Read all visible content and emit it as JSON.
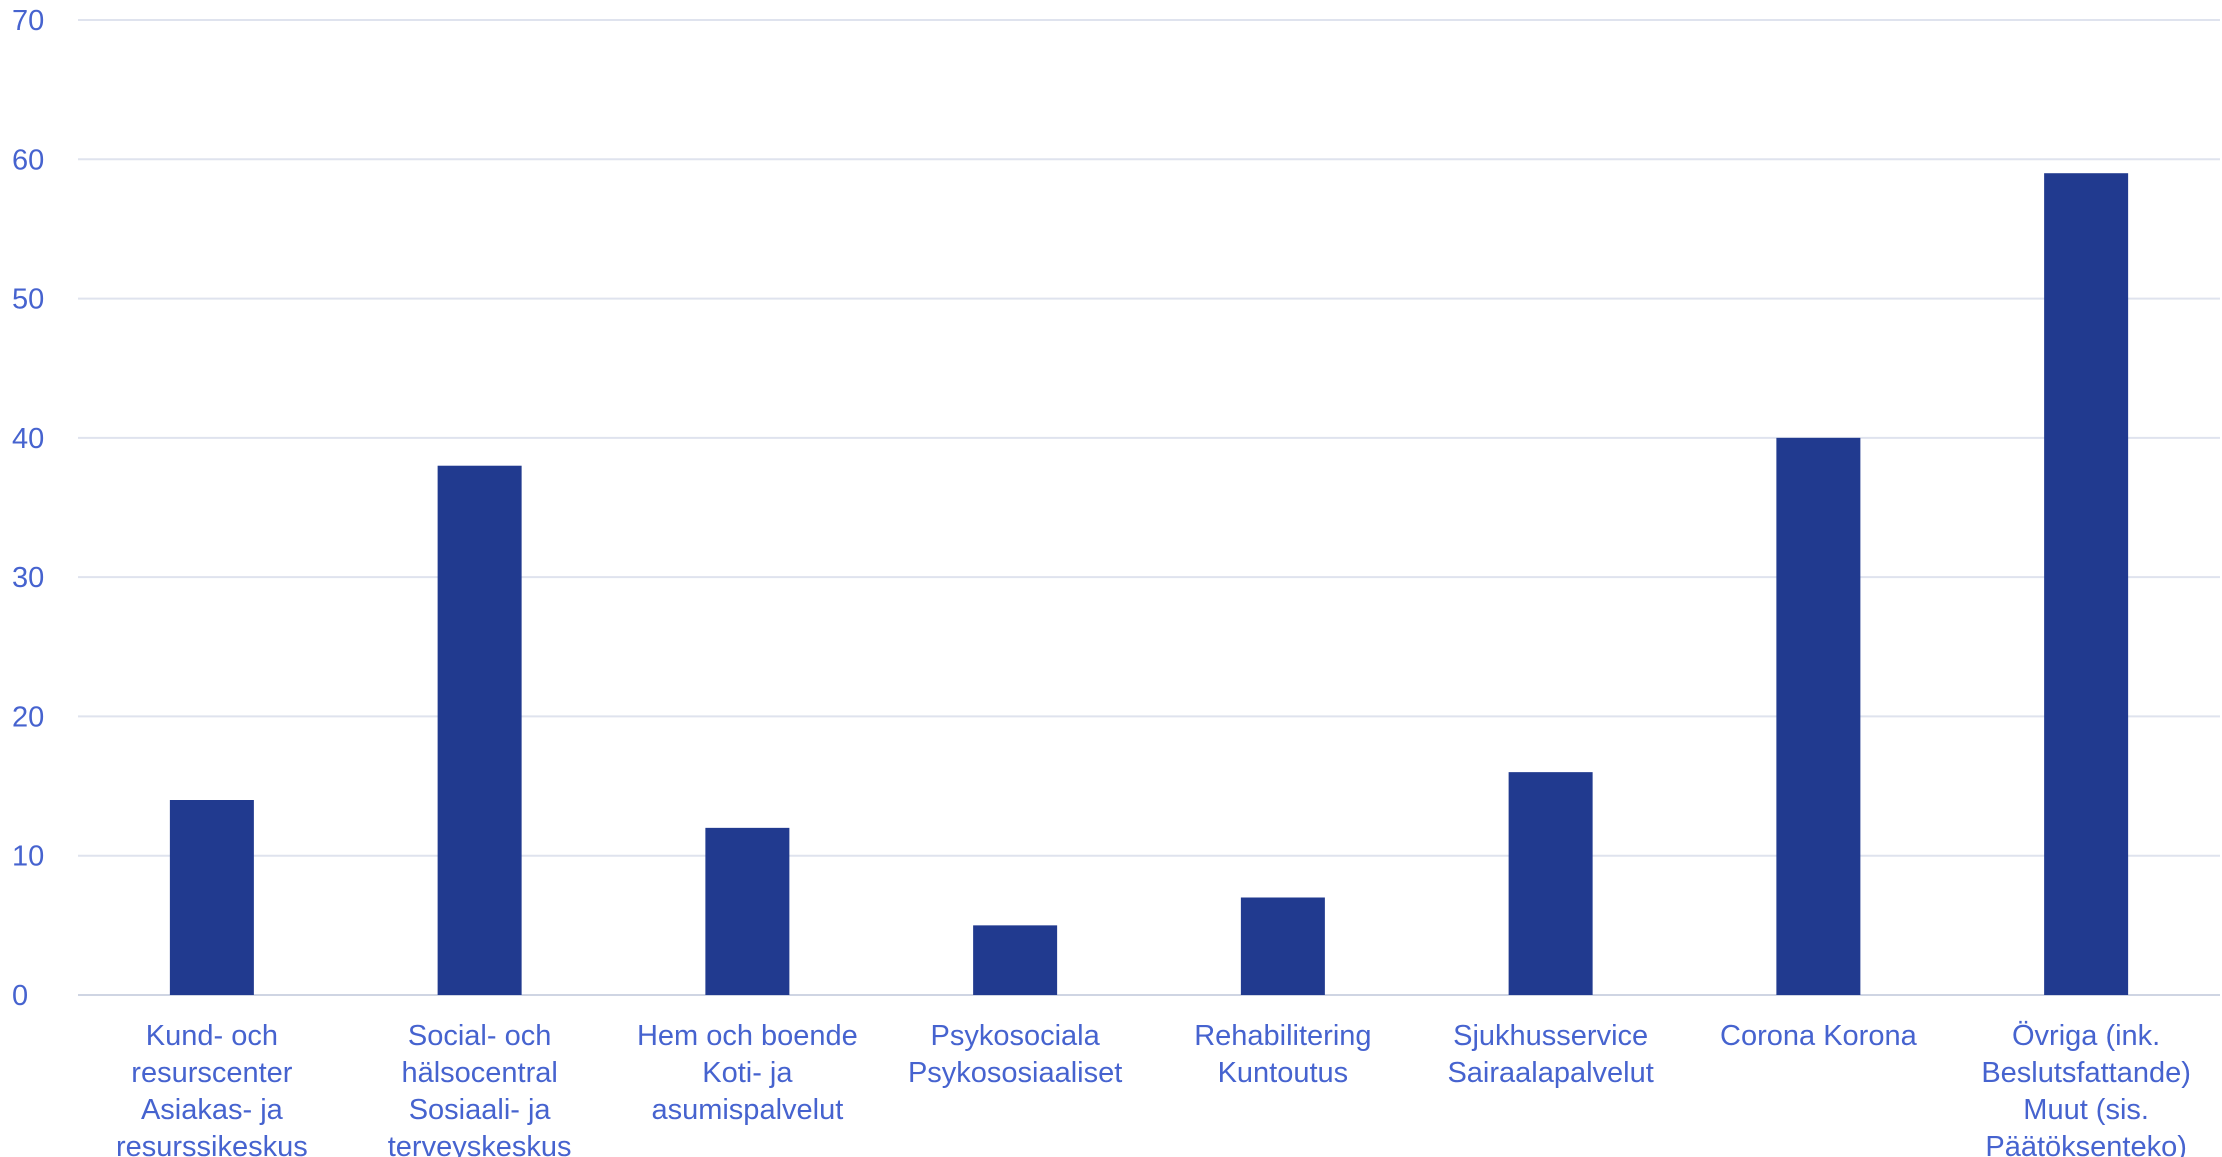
{
  "chart_data": {
    "type": "bar",
    "title": "",
    "xlabel": "",
    "ylabel": "",
    "ylim": [
      0,
      70
    ],
    "yticks": [
      0,
      10,
      20,
      30,
      40,
      50,
      60,
      70
    ],
    "grid": true,
    "categories": [
      [
        "Kund- och",
        "resurscenter",
        "Asiakas- ja",
        "resurssikeskus"
      ],
      [
        "Social- och",
        "hälsocentral",
        "Sosiaali- ja",
        "terveyskeskus"
      ],
      [
        "Hem och boende",
        "Koti- ja",
        "asumispalvelut"
      ],
      [
        "Psykosociala",
        "Psykososiaaliset"
      ],
      [
        "Rehabilitering",
        "Kuntoutus"
      ],
      [
        "Sjukhusservice",
        "Sairaalapalvelut"
      ],
      [
        "Corona Korona"
      ],
      [
        "Övriga (ink.",
        "Beslutsfattande)",
        "Muut (sis.",
        "Päätöksenteko)"
      ]
    ],
    "values": [
      14,
      38,
      12,
      5,
      7,
      16,
      40,
      59
    ],
    "bar_color": "#213a8f",
    "label_color": "#4663cf"
  }
}
